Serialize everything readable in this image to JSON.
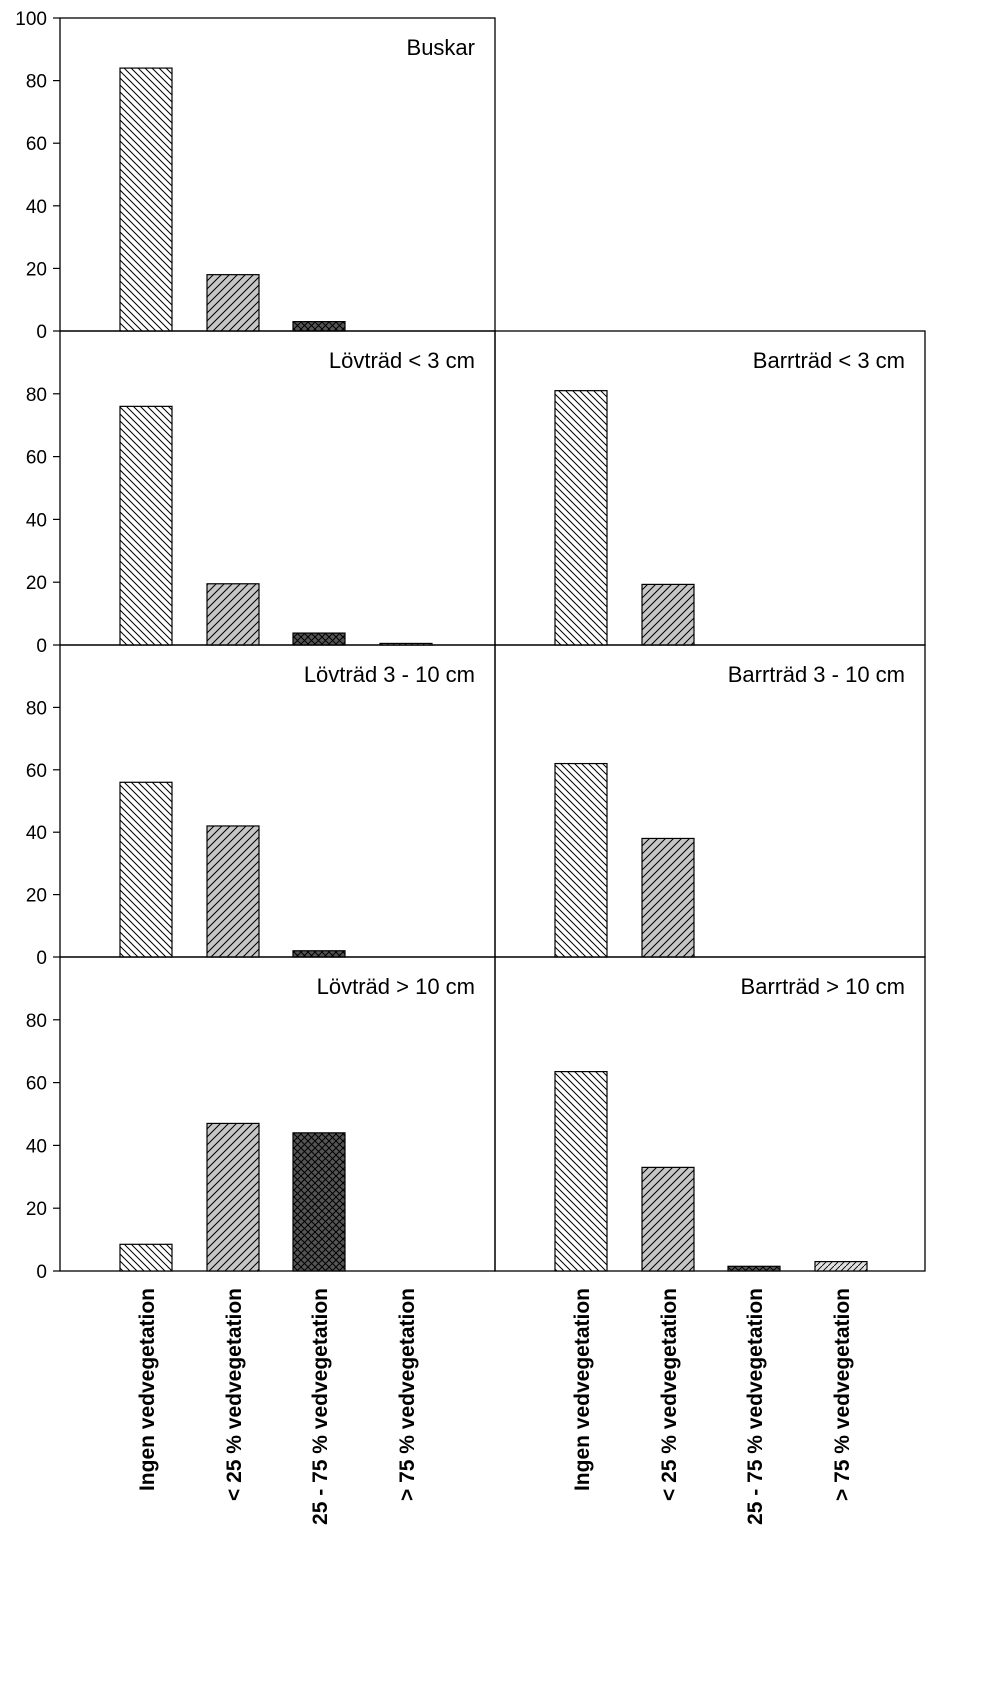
{
  "chart_data": {
    "type": "bar",
    "categories": [
      "Ingen vedvegetation",
      "< 25 % vedvegetation",
      "25 - 75 % vedvegetation",
      "> 75 % vedvegetation"
    ],
    "pattern_names": [
      "back-diagonal-hatch",
      "forward-diagonal-hatch-grey",
      "crosshatch-dark",
      "light-grey-hatch"
    ],
    "colors": {
      "hatch_back": "#ffffff",
      "hatch_grey": "#c6c6c6",
      "cross_dark": "#555555",
      "light": "#dcdcdc",
      "ink": "#000000"
    },
    "panels": [
      {
        "title": "Buskar",
        "values": [
          84,
          18,
          3,
          0
        ],
        "ylim": [
          0,
          100
        ],
        "yticks": [
          "0",
          "20",
          "40",
          "60",
          "80",
          "100"
        ]
      },
      {
        "title": "Lövträd < 3 cm",
        "values": [
          76,
          19.5,
          3.8,
          0.5
        ],
        "ylim": [
          0,
          100
        ],
        "yticks": [
          "0",
          "20",
          "40",
          "60",
          "80"
        ]
      },
      {
        "title": "Barrträd < 3 cm",
        "values": [
          81,
          19.3,
          0,
          0
        ],
        "ylim": [
          0,
          100
        ],
        "yticks": []
      },
      {
        "title": "Lövträd 3 - 10 cm",
        "values": [
          56,
          42,
          2,
          0
        ],
        "ylim": [
          0,
          100
        ],
        "yticks": [
          "0",
          "20",
          "40",
          "60",
          "80"
        ]
      },
      {
        "title": "Barrträd 3 - 10 cm",
        "values": [
          62,
          38,
          0,
          0
        ],
        "ylim": [
          0,
          100
        ],
        "yticks": []
      },
      {
        "title": "Lövträd > 10 cm",
        "values": [
          8.5,
          47,
          44,
          0
        ],
        "ylim": [
          0,
          100
        ],
        "yticks": [
          "0",
          "20",
          "40",
          "60",
          "80"
        ]
      },
      {
        "title": "Barrträd > 10 cm",
        "values": [
          63.5,
          33,
          1.5,
          3
        ],
        "ylim": [
          0,
          100
        ],
        "yticks": []
      }
    ],
    "xlabel": "",
    "ylabel": "",
    "grid": false
  }
}
